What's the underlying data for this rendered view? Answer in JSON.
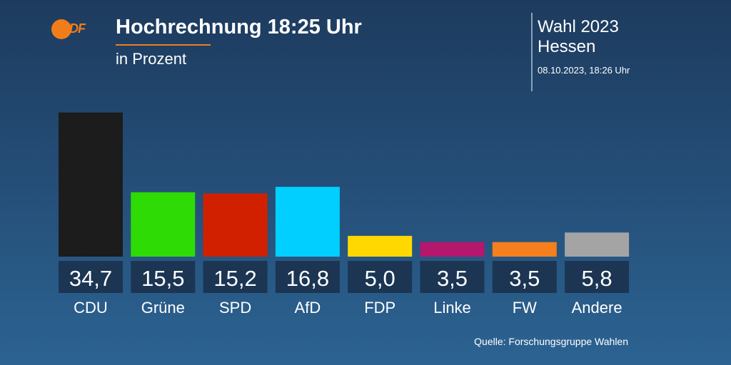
{
  "header": {
    "logo_text": "ZDF",
    "title": "Hochrechnung 18:25 Uhr",
    "subtitle": "in Prozent",
    "election": "Wahl 2023",
    "region": "Hessen",
    "timestamp": "08.10.2023, 18:26 Uhr"
  },
  "footer": {
    "source": "Quelle: Forschungsgruppe Wahlen"
  },
  "chart_data": {
    "type": "bar",
    "categories": [
      "CDU",
      "Grüne",
      "SPD",
      "AfD",
      "FDP",
      "Linke",
      "FW",
      "Andere"
    ],
    "values": [
      34.7,
      15.5,
      15.2,
      16.8,
      5.0,
      3.5,
      3.5,
      5.8
    ],
    "value_labels": [
      "34,7",
      "15,5",
      "15,2",
      "16,8",
      "5,0",
      "3,5",
      "3,5",
      "5,8"
    ],
    "colors": [
      "#1c1c1c",
      "#2edb04",
      "#d12000",
      "#00cfff",
      "#fed800",
      "#b5176d",
      "#f47f1c",
      "#a4a4a4"
    ],
    "ylim": [
      0,
      35
    ],
    "grid": false,
    "legend": "none"
  }
}
